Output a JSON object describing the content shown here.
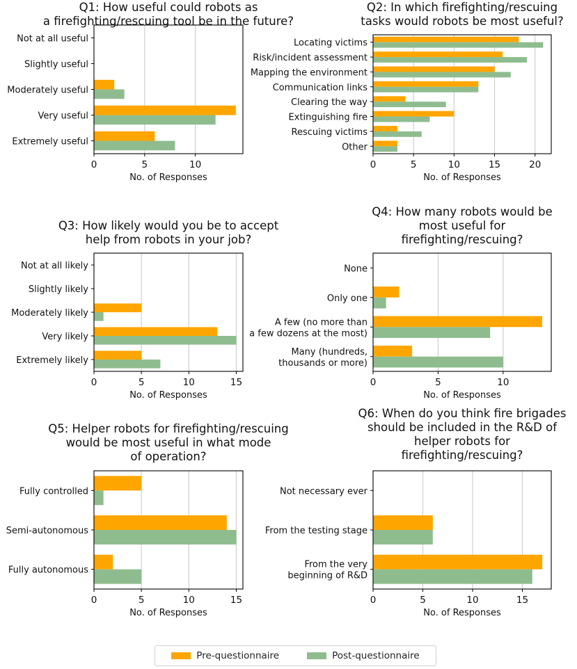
{
  "colors": {
    "pre": "#ffa500",
    "post": "#8fbc8f",
    "grid": "#cfcfcf",
    "axis": "#000000",
    "text": "#111111"
  },
  "legend": {
    "pre_label": "Pre-questionnaire",
    "post_label": "Post-questionnaire"
  },
  "chart_data": [
    {
      "type": "bar",
      "orientation": "horizontal",
      "title": [
        "Q1: How useful could robots as",
        "a firefighting/rescuing tool be in the future?"
      ],
      "xlabel": "No. of Responses",
      "xlim": [
        0,
        14.7
      ],
      "xticks": [
        0,
        5,
        10
      ],
      "categories": [
        [
          "Not at all useful"
        ],
        [
          "Slightly useful"
        ],
        [
          "Moderately useful"
        ],
        [
          "Very useful"
        ],
        [
          "Extremely useful"
        ]
      ],
      "series": [
        {
          "name": "Pre-questionnaire",
          "values": [
            0,
            0,
            2,
            14,
            6
          ]
        },
        {
          "name": "Post-questionnaire",
          "values": [
            0,
            0,
            3,
            12,
            8
          ]
        }
      ]
    },
    {
      "type": "bar",
      "orientation": "horizontal",
      "title": [
        "Q2: In which firefighting/rescuing",
        "tasks would robots be most useful?"
      ],
      "xlabel": "No. of Responses",
      "xlim": [
        0,
        22
      ],
      "xticks": [
        0,
        5,
        10,
        15,
        20
      ],
      "categories": [
        [
          "Locating victims"
        ],
        [
          "Risk/incident assessment"
        ],
        [
          "Mapping the environment"
        ],
        [
          "Communication links"
        ],
        [
          "Clearing the way"
        ],
        [
          "Extinguishing fire"
        ],
        [
          "Rescuing victims"
        ],
        [
          "Other"
        ]
      ],
      "series": [
        {
          "name": "Pre-questionnaire",
          "values": [
            18,
            16,
            15,
            13,
            4,
            10,
            3,
            3
          ]
        },
        {
          "name": "Post-questionnaire",
          "values": [
            21,
            19,
            17,
            13,
            9,
            7,
            6,
            3
          ]
        }
      ]
    },
    {
      "type": "bar",
      "orientation": "horizontal",
      "title": [
        "Q3: How likely would you be to accept",
        "help from robots in your job?"
      ],
      "xlabel": "No. of Responses",
      "xlim": [
        0,
        15.7
      ],
      "xticks": [
        0,
        5,
        10,
        15
      ],
      "categories": [
        [
          "Not at all likely"
        ],
        [
          "Slightly likely"
        ],
        [
          "Moderately likely"
        ],
        [
          "Very likely"
        ],
        [
          "Extremely likely"
        ]
      ],
      "series": [
        {
          "name": "Pre-questionnaire",
          "values": [
            0,
            0,
            5,
            13,
            5
          ]
        },
        {
          "name": "Post-questionnaire",
          "values": [
            0,
            0,
            1,
            15,
            7
          ]
        }
      ]
    },
    {
      "type": "bar",
      "orientation": "horizontal",
      "title": [
        "Q4: How many robots would be",
        "most useful for",
        "firefighting/rescuing?"
      ],
      "xlabel": "No. of Responses",
      "xlim": [
        0,
        13.7
      ],
      "xticks": [
        0,
        5,
        10
      ],
      "categories": [
        [
          "None"
        ],
        [
          "Only one"
        ],
        [
          "A few (no more than",
          "a few dozens at the most)"
        ],
        [
          "Many (hundreds,",
          "thousands or more)"
        ]
      ],
      "series": [
        {
          "name": "Pre-questionnaire",
          "values": [
            0,
            2,
            13,
            3
          ]
        },
        {
          "name": "Post-questionnaire",
          "values": [
            0,
            1,
            9,
            10
          ]
        }
      ]
    },
    {
      "type": "bar",
      "orientation": "horizontal",
      "title": [
        "Q5: Helper robots for firefighting/rescuing",
        "would be most useful in what mode",
        "of operation?"
      ],
      "xlabel": "No. of Responses",
      "xlim": [
        0,
        15.7
      ],
      "xticks": [
        0,
        5,
        10,
        15
      ],
      "categories": [
        [
          "Fully controlled"
        ],
        [
          "Semi-autonomous"
        ],
        [
          "Fully autonomous"
        ]
      ],
      "series": [
        {
          "name": "Pre-questionnaire",
          "values": [
            5,
            14,
            2
          ]
        },
        {
          "name": "Post-questionnaire",
          "values": [
            1,
            15,
            5
          ]
        }
      ]
    },
    {
      "type": "bar",
      "orientation": "horizontal",
      "title": [
        "Q6: When do you think fire brigades",
        "should be included in the R&D of",
        "helper robots for",
        "firefighting/rescuing?"
      ],
      "xlabel": "No. of Responses",
      "xlim": [
        0,
        17.9
      ],
      "xticks": [
        0,
        5,
        10,
        15
      ],
      "categories": [
        [
          "Not necessary ever"
        ],
        [
          "From the testing stage"
        ],
        [
          "From the very",
          "beginning of R&D"
        ]
      ],
      "series": [
        {
          "name": "Pre-questionnaire",
          "values": [
            0,
            6,
            17
          ]
        },
        {
          "name": "Post-questionnaire",
          "values": [
            0,
            6,
            16
          ]
        }
      ]
    }
  ]
}
